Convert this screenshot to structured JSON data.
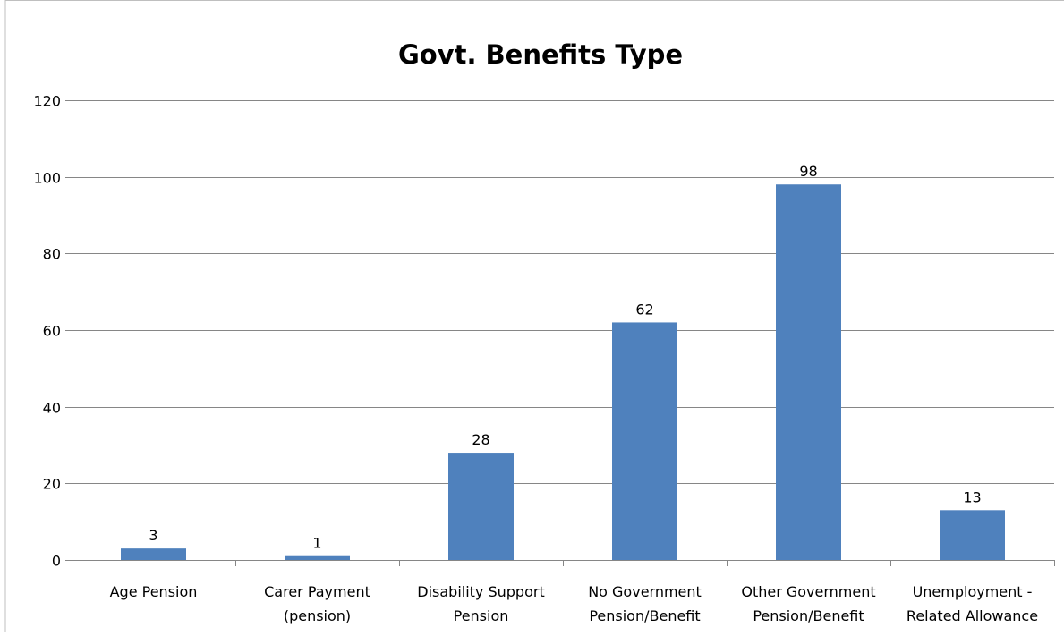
{
  "chart_data": {
    "type": "bar",
    "title": "Govt. Benefits Type",
    "xlabel": "",
    "ylabel": "",
    "ylim": [
      0,
      120
    ],
    "yticks": [
      0,
      20,
      40,
      60,
      80,
      100,
      120
    ],
    "grid": true,
    "legend": "none",
    "categories": [
      [
        "Age Pension"
      ],
      [
        "Carer Payment",
        "(pension)"
      ],
      [
        "Disability Support",
        "Pension"
      ],
      [
        "No Government",
        "Pension/Benefit"
      ],
      [
        "Other Government",
        "Pension/Benefit"
      ],
      [
        "Unemployment -",
        "Related Allowance"
      ]
    ],
    "values": [
      3,
      1,
      28,
      62,
      98,
      13
    ],
    "data_labels": [
      "3",
      "1",
      "28",
      "62",
      "98",
      "13"
    ]
  },
  "colors": {
    "bar": "#4f81bd",
    "gridline": "#868686",
    "axis": "#868686",
    "text": "#000000",
    "frame": "#bfbfbf"
  }
}
